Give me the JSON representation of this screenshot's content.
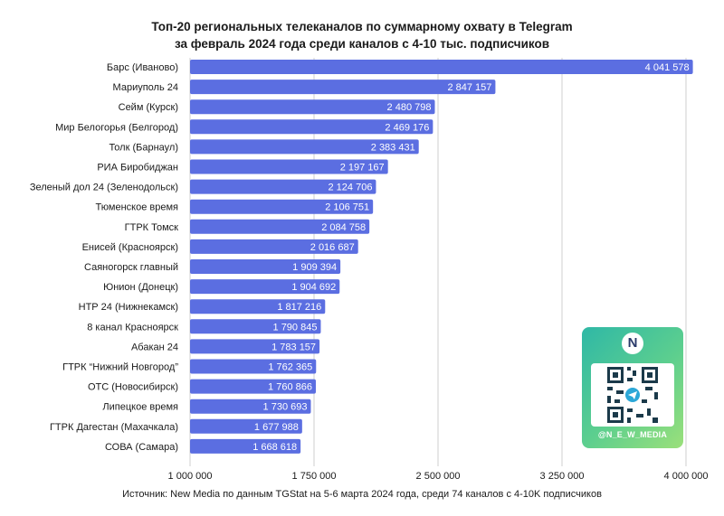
{
  "chart_data": {
    "type": "bar",
    "orientation": "horizontal",
    "title_line1": "Топ-20 региональных телеканалов по суммарному охвату в Telegram",
    "title_line2": "за февраль 2024 года среди каналов с 4-10 тыс. подписчиков",
    "categories": [
      "Барс (Иваново)",
      "Мариуполь 24",
      "Сейм (Курск)",
      "Мир Белогорья (Белгород)",
      "Толк (Барнаул)",
      "РИА Биробиджан",
      "Зеленый дол 24 (Зеленодольск)",
      "Тюменское время",
      "ГТРК Томск",
      "Енисей (Красноярск)",
      "Саяногорск главный",
      "Юнион (Донецк)",
      "НТР 24 (Нижнекамск)",
      "8 канал Красноярск",
      "Абакан 24",
      "ГТРК “Нижний Новгород”",
      "ОТС (Новосибирск)",
      "Липецкое время",
      "ГТРК Дагестан (Махачкала)",
      "СОВА (Самара)"
    ],
    "values": [
      4041578,
      2847157,
      2480798,
      2469176,
      2383431,
      2197167,
      2124706,
      2106751,
      2084758,
      2016687,
      1909394,
      1904692,
      1817216,
      1790845,
      1783157,
      1762365,
      1760866,
      1730693,
      1677988,
      1668618
    ],
    "value_labels": [
      "4 041 578",
      "2 847 157",
      "2 480 798",
      "2 469 176",
      "2 383 431",
      "2 197 167",
      "2 124 706",
      "2 106 751",
      "2 084 758",
      "2 016 687",
      "1 909 394",
      "1 904 692",
      "1 817 216",
      "1 790 845",
      "1 783 157",
      "1 762 365",
      "1 760 866",
      "1 730 693",
      "1 677 988",
      "1 668 618"
    ],
    "xlim": [
      1000000,
      4000000
    ],
    "xticks": [
      1000000,
      1750000,
      2500000,
      3250000,
      4000000
    ],
    "xtick_labels": [
      "1 000 000",
      "1 750 000",
      "2 500 000",
      "3 250 000",
      "4 000 000"
    ],
    "grid": true,
    "bar_color": "#5b6ee1"
  },
  "footnote": "Источник: New Media по данным TGStat на 5-6 марта 2024 года, среди 74 каналов с 4-10K подписчиков",
  "qr_card": {
    "logo_letter": "N",
    "handle": "@N_E_W_MEDIA",
    "colors": [
      "#2fb8a6",
      "#9be07a"
    ]
  }
}
